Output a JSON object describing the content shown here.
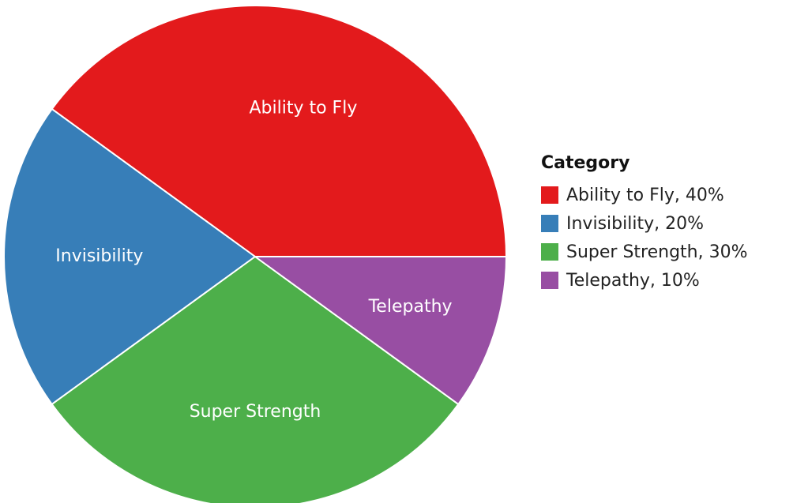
{
  "chart_data": {
    "type": "pie",
    "legend_title": "Category",
    "legend_position": "right",
    "slices": [
      {
        "label": "Ability to Fly",
        "legend_text": "Ability to Fly, 40%",
        "value": 40,
        "color": "#e31a1c"
      },
      {
        "label": "Invisibility",
        "legend_text": "Invisibility, 20%",
        "value": 20,
        "color": "#377eb8"
      },
      {
        "label": "Super Strength",
        "legend_text": "Super Strength, 30%",
        "value": 30,
        "color": "#4daf4a"
      },
      {
        "label": "Telepathy",
        "legend_text": "Telepathy, 10%",
        "value": 10,
        "color": "#984ea3"
      }
    ]
  }
}
